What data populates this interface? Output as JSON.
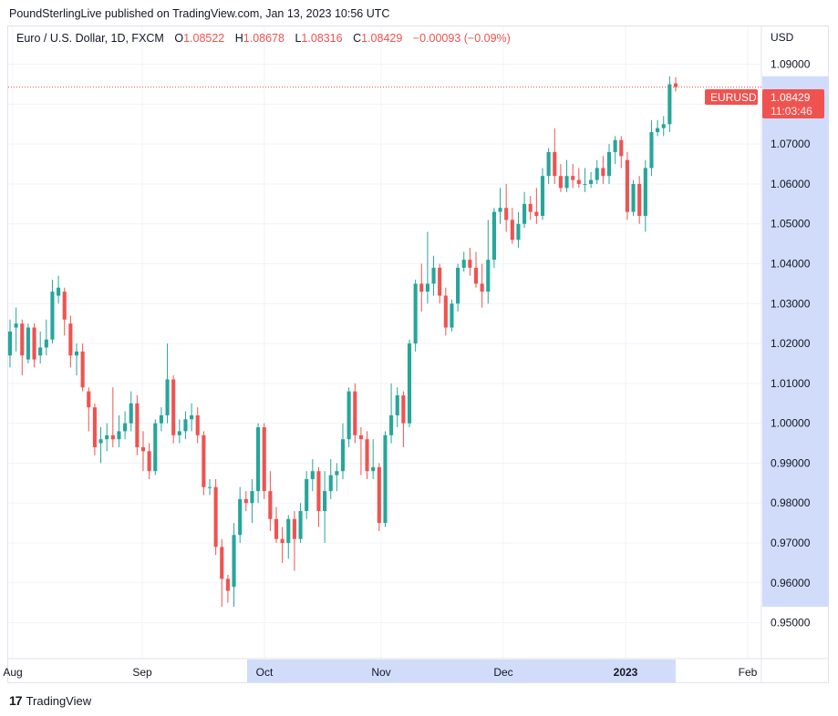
{
  "header": {
    "published": "PoundSterlingLive published on TradingView.com, Jan 13, 2023 10:56 UTC"
  },
  "legend": {
    "symbol": "Euro / U.S. Dollar, 1D, FXCM",
    "o_label": "O",
    "o_value": "1.08522",
    "h_label": "H",
    "h_value": "1.08678",
    "l_label": "L",
    "l_value": "1.08316",
    "c_label": "C",
    "c_value": "1.08429",
    "change": "−0.00093 (−0.09%)"
  },
  "price_axis": {
    "currency": "USD",
    "ticks": [
      "1.09000",
      "1.08000",
      "1.07000",
      "1.06000",
      "1.05000",
      "1.04000",
      "1.03000",
      "1.02000",
      "1.01000",
      "1.00000",
      "0.99000",
      "0.98000",
      "0.97000",
      "0.96000",
      "0.95000"
    ],
    "tag_symbol": "EURUSD",
    "tag_price": "1.08429",
    "tag_countdown": "11:03:46"
  },
  "time_axis": {
    "labels": [
      "Aug",
      "Sep",
      "Oct",
      "Nov",
      "Dec",
      "2023",
      "Feb"
    ]
  },
  "footer": {
    "brand": "TradingView",
    "logo": "17"
  },
  "colors": {
    "up": "#26a69a",
    "down": "#ef5350",
    "grid": "#f0f3fa",
    "highlight": "#d1dcfb"
  },
  "chart_data": {
    "type": "candlestick",
    "title": "Euro / U.S. Dollar, 1D, FXCM",
    "ylabel": "USD",
    "ylim": [
      0.941,
      1.0995
    ],
    "x_labels": [
      "Aug",
      "Sep",
      "Oct",
      "Nov",
      "Dec",
      "2023",
      "Feb"
    ],
    "last_close": 1.08429,
    "series": [
      {
        "o": 1.017,
        "c": 1.023,
        "h": 1.026,
        "l": 1.014
      },
      {
        "o": 1.024,
        "c": 1.025,
        "h": 1.029,
        "l": 1.018
      },
      {
        "o": 1.025,
        "c": 1.017,
        "h": 1.026,
        "l": 1.012
      },
      {
        "o": 1.016,
        "c": 1.024,
        "h": 1.025,
        "l": 1.015
      },
      {
        "o": 1.024,
        "c": 1.016,
        "h": 1.025,
        "l": 1.014
      },
      {
        "o": 1.017,
        "c": 1.019,
        "h": 1.023,
        "l": 1.015
      },
      {
        "o": 1.019,
        "c": 1.021,
        "h": 1.026,
        "l": 1.017
      },
      {
        "o": 1.021,
        "c": 1.033,
        "h": 1.036,
        "l": 1.02
      },
      {
        "o": 1.032,
        "c": 1.034,
        "h": 1.037,
        "l": 1.03
      },
      {
        "o": 1.033,
        "c": 1.026,
        "h": 1.034,
        "l": 1.022
      },
      {
        "o": 1.025,
        "c": 1.017,
        "h": 1.027,
        "l": 1.014
      },
      {
        "o": 1.017,
        "c": 1.018,
        "h": 1.02,
        "l": 1.012
      },
      {
        "o": 1.018,
        "c": 1.009,
        "h": 1.02,
        "l": 1.008
      },
      {
        "o": 1.008,
        "c": 1.004,
        "h": 1.009,
        "l": 0.998
      },
      {
        "o": 1.004,
        "c": 0.994,
        "h": 1.005,
        "l": 0.992
      },
      {
        "o": 0.995,
        "c": 0.996,
        "h": 0.999,
        "l": 0.99
      },
      {
        "o": 0.996,
        "c": 0.997,
        "h": 1.0,
        "l": 0.993
      },
      {
        "o": 0.997,
        "c": 0.996,
        "h": 1.009,
        "l": 0.994
      },
      {
        "o": 0.996,
        "c": 0.998,
        "h": 1.002,
        "l": 0.994
      },
      {
        "o": 0.998,
        "c": 1.0,
        "h": 1.003,
        "l": 0.996
      },
      {
        "o": 1.0,
        "c": 1.005,
        "h": 1.008,
        "l": 0.998
      },
      {
        "o": 1.005,
        "c": 0.994,
        "h": 1.007,
        "l": 0.992
      },
      {
        "o": 0.994,
        "c": 0.993,
        "h": 0.998,
        "l": 0.988
      },
      {
        "o": 0.993,
        "c": 0.988,
        "h": 0.995,
        "l": 0.986
      },
      {
        "o": 0.988,
        "c": 1.0,
        "h": 1.001,
        "l": 0.987
      },
      {
        "o": 1.0,
        "c": 1.002,
        "h": 1.004,
        "l": 0.998
      },
      {
        "o": 1.002,
        "c": 1.011,
        "h": 1.02,
        "l": 1.0
      },
      {
        "o": 1.011,
        "c": 0.997,
        "h": 1.012,
        "l": 0.995
      },
      {
        "o": 0.997,
        "c": 0.998,
        "h": 1.001,
        "l": 0.995
      },
      {
        "o": 0.998,
        "c": 1.001,
        "h": 1.003,
        "l": 0.996
      },
      {
        "o": 1.001,
        "c": 1.002,
        "h": 1.005,
        "l": 0.998
      },
      {
        "o": 1.002,
        "c": 0.997,
        "h": 1.004,
        "l": 0.995
      },
      {
        "o": 0.997,
        "c": 0.984,
        "h": 0.998,
        "l": 0.982
      },
      {
        "o": 0.984,
        "c": 0.984,
        "h": 0.986,
        "l": 0.982
      },
      {
        "o": 0.984,
        "c": 0.969,
        "h": 0.986,
        "l": 0.967
      },
      {
        "o": 0.969,
        "c": 0.961,
        "h": 0.971,
        "l": 0.954
      },
      {
        "o": 0.961,
        "c": 0.958,
        "h": 0.962,
        "l": 0.955
      },
      {
        "o": 0.959,
        "c": 0.972,
        "h": 0.975,
        "l": 0.954
      },
      {
        "o": 0.972,
        "c": 0.981,
        "h": 0.984,
        "l": 0.97
      },
      {
        "o": 0.981,
        "c": 0.98,
        "h": 0.983,
        "l": 0.978
      },
      {
        "o": 0.98,
        "c": 0.983,
        "h": 0.986,
        "l": 0.975
      },
      {
        "o": 0.983,
        "c": 0.999,
        "h": 1.0,
        "l": 0.98
      },
      {
        "o": 0.999,
        "c": 0.983,
        "h": 1.0,
        "l": 0.981
      },
      {
        "o": 0.983,
        "c": 0.976,
        "h": 0.988,
        "l": 0.973
      },
      {
        "o": 0.976,
        "c": 0.971,
        "h": 0.979,
        "l": 0.97
      },
      {
        "o": 0.971,
        "c": 0.97,
        "h": 0.974,
        "l": 0.965
      },
      {
        "o": 0.97,
        "c": 0.976,
        "h": 0.977,
        "l": 0.966
      },
      {
        "o": 0.976,
        "c": 0.971,
        "h": 0.978,
        "l": 0.963
      },
      {
        "o": 0.971,
        "c": 0.978,
        "h": 0.98,
        "l": 0.97
      },
      {
        "o": 0.978,
        "c": 0.986,
        "h": 0.988,
        "l": 0.976
      },
      {
        "o": 0.986,
        "c": 0.988,
        "h": 0.991,
        "l": 0.983
      },
      {
        "o": 0.988,
        "c": 0.978,
        "h": 0.989,
        "l": 0.974
      },
      {
        "o": 0.978,
        "c": 0.983,
        "h": 0.988,
        "l": 0.97
      },
      {
        "o": 0.983,
        "c": 0.987,
        "h": 0.991,
        "l": 0.981
      },
      {
        "o": 0.987,
        "c": 0.988,
        "h": 0.99,
        "l": 0.983
      },
      {
        "o": 0.988,
        "c": 0.996,
        "h": 1.0,
        "l": 0.986
      },
      {
        "o": 0.996,
        "c": 1.008,
        "h": 1.009,
        "l": 0.994
      },
      {
        "o": 1.008,
        "c": 0.997,
        "h": 1.01,
        "l": 0.995
      },
      {
        "o": 0.997,
        "c": 0.996,
        "h": 0.999,
        "l": 0.987
      },
      {
        "o": 0.996,
        "c": 0.988,
        "h": 0.998,
        "l": 0.986
      },
      {
        "o": 0.988,
        "c": 0.989,
        "h": 0.996,
        "l": 0.986
      },
      {
        "o": 0.989,
        "c": 0.975,
        "h": 0.99,
        "l": 0.973
      },
      {
        "o": 0.975,
        "c": 0.997,
        "h": 0.998,
        "l": 0.974
      },
      {
        "o": 0.997,
        "c": 1.002,
        "h": 1.01,
        "l": 0.995
      },
      {
        "o": 1.002,
        "c": 1.007,
        "h": 1.009,
        "l": 0.999
      },
      {
        "o": 1.007,
        "c": 1.0,
        "h": 1.008,
        "l": 0.994
      },
      {
        "o": 1.0,
        "c": 1.02,
        "h": 1.021,
        "l": 0.999
      },
      {
        "o": 1.02,
        "c": 1.035,
        "h": 1.036,
        "l": 1.018
      },
      {
        "o": 1.035,
        "c": 1.033,
        "h": 1.04,
        "l": 1.028
      },
      {
        "o": 1.033,
        "c": 1.035,
        "h": 1.048,
        "l": 1.03
      },
      {
        "o": 1.035,
        "c": 1.039,
        "h": 1.042,
        "l": 1.032
      },
      {
        "o": 1.039,
        "c": 1.032,
        "h": 1.04,
        "l": 1.03
      },
      {
        "o": 1.032,
        "c": 1.024,
        "h": 1.034,
        "l": 1.022
      },
      {
        "o": 1.024,
        "c": 1.03,
        "h": 1.031,
        "l": 1.023
      },
      {
        "o": 1.03,
        "c": 1.039,
        "h": 1.04,
        "l": 1.028
      },
      {
        "o": 1.039,
        "c": 1.041,
        "h": 1.043,
        "l": 1.038
      },
      {
        "o": 1.041,
        "c": 1.039,
        "h": 1.044,
        "l": 1.037
      },
      {
        "o": 1.039,
        "c": 1.035,
        "h": 1.043,
        "l": 1.034
      },
      {
        "o": 1.035,
        "c": 1.033,
        "h": 1.04,
        "l": 1.029
      },
      {
        "o": 1.033,
        "c": 1.041,
        "h": 1.051,
        "l": 1.03
      },
      {
        "o": 1.041,
        "c": 1.053,
        "h": 1.054,
        "l": 1.039
      },
      {
        "o": 1.053,
        "c": 1.054,
        "h": 1.059,
        "l": 1.05
      },
      {
        "o": 1.054,
        "c": 1.051,
        "h": 1.06,
        "l": 1.048
      },
      {
        "o": 1.051,
        "c": 1.046,
        "h": 1.054,
        "l": 1.045
      },
      {
        "o": 1.046,
        "c": 1.05,
        "h": 1.053,
        "l": 1.044
      },
      {
        "o": 1.05,
        "c": 1.055,
        "h": 1.058,
        "l": 1.049
      },
      {
        "o": 1.055,
        "c": 1.053,
        "h": 1.057,
        "l": 1.051
      },
      {
        "o": 1.053,
        "c": 1.052,
        "h": 1.059,
        "l": 1.05
      },
      {
        "o": 1.052,
        "c": 1.062,
        "h": 1.064,
        "l": 1.051
      },
      {
        "o": 1.062,
        "c": 1.068,
        "h": 1.069,
        "l": 1.06
      },
      {
        "o": 1.068,
        "c": 1.062,
        "h": 1.074,
        "l": 1.06
      },
      {
        "o": 1.062,
        "c": 1.059,
        "h": 1.065,
        "l": 1.058
      },
      {
        "o": 1.059,
        "c": 1.062,
        "h": 1.066,
        "l": 1.058
      },
      {
        "o": 1.062,
        "c": 1.061,
        "h": 1.065,
        "l": 1.059
      },
      {
        "o": 1.061,
        "c": 1.06,
        "h": 1.064,
        "l": 1.059
      },
      {
        "o": 1.06,
        "c": 1.06,
        "h": 1.064,
        "l": 1.058
      },
      {
        "o": 1.06,
        "c": 1.061,
        "h": 1.063,
        "l": 1.059
      },
      {
        "o": 1.061,
        "c": 1.064,
        "h": 1.066,
        "l": 1.06
      },
      {
        "o": 1.064,
        "c": 1.062,
        "h": 1.067,
        "l": 1.06
      },
      {
        "o": 1.062,
        "c": 1.068,
        "h": 1.07,
        "l": 1.06
      },
      {
        "o": 1.068,
        "c": 1.071,
        "h": 1.072,
        "l": 1.065
      },
      {
        "o": 1.071,
        "c": 1.067,
        "h": 1.072,
        "l": 1.064
      },
      {
        "o": 1.066,
        "c": 1.053,
        "h": 1.068,
        "l": 1.051
      },
      {
        "o": 1.053,
        "c": 1.06,
        "h": 1.061,
        "l": 1.052
      },
      {
        "o": 1.06,
        "c": 1.052,
        "h": 1.062,
        "l": 1.05
      },
      {
        "o": 1.052,
        "c": 1.064,
        "h": 1.066,
        "l": 1.048
      },
      {
        "o": 1.064,
        "c": 1.073,
        "h": 1.076,
        "l": 1.062
      },
      {
        "o": 1.073,
        "c": 1.074,
        "h": 1.076,
        "l": 1.072
      },
      {
        "o": 1.074,
        "c": 1.075,
        "h": 1.077,
        "l": 1.072
      },
      {
        "o": 1.075,
        "c": 1.085,
        "h": 1.087,
        "l": 1.073
      },
      {
        "o": 1.08522,
        "c": 1.08429,
        "h": 1.08678,
        "l": 1.08316
      }
    ]
  }
}
